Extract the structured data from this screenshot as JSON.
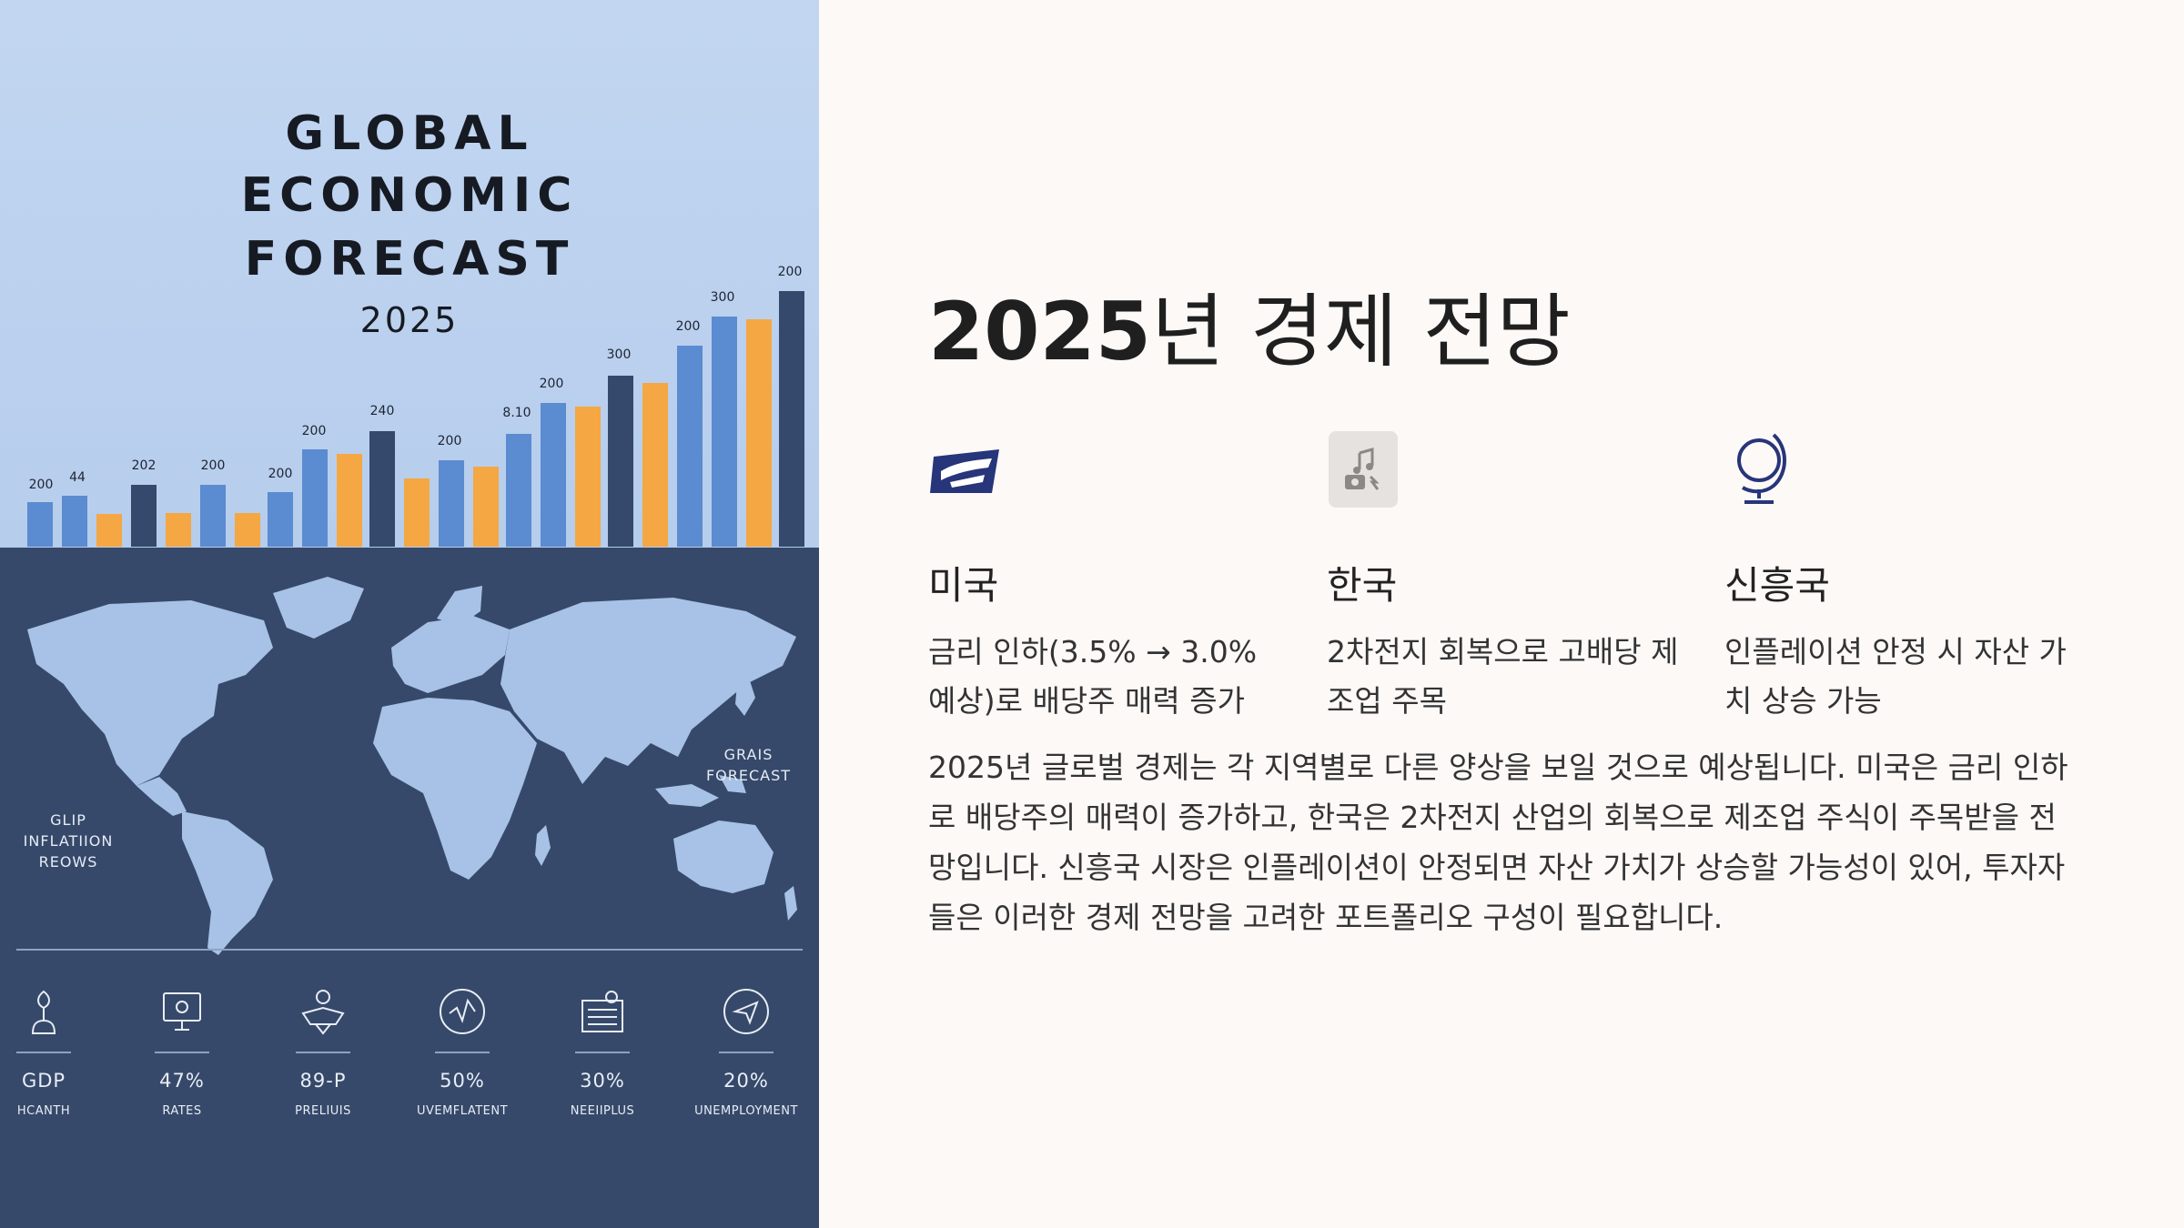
{
  "poster": {
    "title_lines": [
      "GLOBAL",
      "ECONOMIC",
      "FORECAST"
    ],
    "year": "2025",
    "bar_labels": [
      {
        "text": "200"
      },
      {
        "text": "44"
      },
      {
        "text": "202"
      },
      {
        "text": "200"
      },
      {
        "text": "200"
      },
      {
        "text": "200"
      },
      {
        "text": "240"
      },
      {
        "text": "200"
      },
      {
        "text": "8.10"
      },
      {
        "text": "200"
      },
      {
        "text": "300"
      },
      {
        "text": "200"
      },
      {
        "text": "300"
      },
      {
        "text": "200"
      }
    ],
    "notes": {
      "left": "GLIP INFLATIION REOWS",
      "right": "GRAIS FORECAST"
    },
    "stats": [
      {
        "value": "GDP",
        "label": "HCANTH",
        "icon": "plant-icon"
      },
      {
        "value": "47%",
        "label": "RATES",
        "icon": "monitor-icon"
      },
      {
        "value": "89-P",
        "label": "PRELIUIS",
        "icon": "person-icon"
      },
      {
        "value": "50%",
        "label": "UVEMFLATENT",
        "icon": "chart-circle-icon"
      },
      {
        "value": "30%",
        "label": "NEEIIPLUS",
        "icon": "document-icon"
      },
      {
        "value": "20%",
        "label": "UNEMPLOYMENT",
        "icon": "paper-plane-icon"
      }
    ],
    "colors": {
      "top_bg": "#c2d6f1",
      "bottom_bg": "#36496a",
      "bar_blue": "#5b8bd0",
      "bar_orange": "#f4a742",
      "bar_navy": "#34496b",
      "map": "#a7c2e6"
    }
  },
  "slide": {
    "title_number": "2025",
    "title_rest": "년 경제 전망",
    "regions": [
      {
        "name": "미국",
        "icon": "usps-eagle-icon",
        "desc": "금리 인하(3.5% → 3.0% 예상)로 배당주 매력 증가"
      },
      {
        "name": "한국",
        "icon": "music-camera-icon",
        "desc": "2차전지 회복으로 고배당 제조업 주목"
      },
      {
        "name": "신흥국",
        "icon": "globe-icon",
        "desc": "인플레이션 안정 시 자산 가치 상승 가능"
      }
    ],
    "summary": "2025년 글로벌 경제는 각 지역별로 다른 양상을 보일 것으로 예상됩니다. 미국은 금리 인하로 배당주의 매력이 증가하고, 한국은 2차전지 산업의 회복으로 제조업 주식이 주목받을 전망입니다. 신흥국 시장은 인플레이션이 안정되면 자산 가치가 상승할 가능성이 있어, 투자자들은 이러한 경제 전망을 고려한 포트폴리오 구성이 필요합니다."
  }
}
